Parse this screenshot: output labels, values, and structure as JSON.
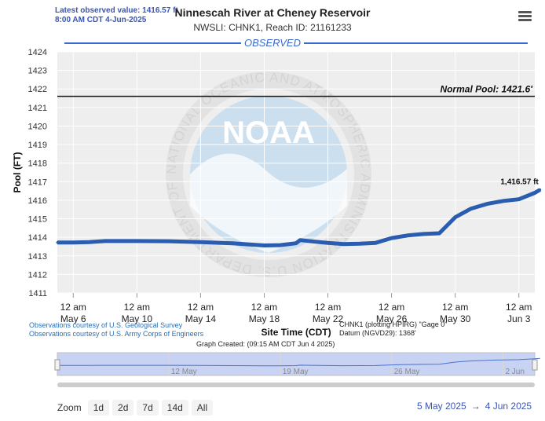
{
  "header": {
    "latest_line1": "Latest observed value: 1416.57 ft",
    "latest_line2": "8:00 AM CDT 4-Jun-2025",
    "title": "Ninnescah River at Cheney Reservoir",
    "subtitle": "NWSLI: CHNK1, Reach ID: 21161233",
    "menu_icon": "hamburger-menu-icon"
  },
  "band_label": "OBSERVED",
  "chart_data": {
    "type": "line",
    "title": "Ninnescah River at Cheney Reservoir",
    "ylabel": "Pool (FT)",
    "xlabel": "Site Time (CDT)",
    "ylim": [
      1411,
      1424
    ],
    "yticks": [
      "1411",
      "1412",
      "1413",
      "1414",
      "1415",
      "1416",
      "1417",
      "1418",
      "1419",
      "1420",
      "1421",
      "1422",
      "1423",
      "1424"
    ],
    "xlim": [
      "2025-05-05",
      "2025-06-04"
    ],
    "xticks": [
      {
        "date": "2025-05-06",
        "top": "12 am",
        "bottom": "May 6"
      },
      {
        "date": "2025-05-10",
        "top": "12 am",
        "bottom": "May 10"
      },
      {
        "date": "2025-05-14",
        "top": "12 am",
        "bottom": "May 14"
      },
      {
        "date": "2025-05-18",
        "top": "12 am",
        "bottom": "May 18"
      },
      {
        "date": "2025-05-22",
        "top": "12 am",
        "bottom": "May 22"
      },
      {
        "date": "2025-05-26",
        "top": "12 am",
        "bottom": "May 26"
      },
      {
        "date": "2025-05-30",
        "top": "12 am",
        "bottom": "May 30"
      },
      {
        "date": "2025-06-03",
        "top": "12 am",
        "bottom": "Jun 3"
      }
    ],
    "grid": true,
    "series": [
      {
        "color": "#2a5cb0",
        "points": [
          [
            "2025-05-05 00:00",
            1413.72
          ],
          [
            "2025-05-06 00:00",
            1413.72
          ],
          [
            "2025-05-07 00:00",
            1413.74
          ],
          [
            "2025-05-08 00:00",
            1413.8
          ],
          [
            "2025-05-10 00:00",
            1413.8
          ],
          [
            "2025-05-12 00:00",
            1413.79
          ],
          [
            "2025-05-14 00:00",
            1413.74
          ],
          [
            "2025-05-16 00:00",
            1413.68
          ],
          [
            "2025-05-18 00:00",
            1413.56
          ],
          [
            "2025-05-19 00:00",
            1413.58
          ],
          [
            "2025-05-20 00:00",
            1413.68
          ],
          [
            "2025-05-20 06:00",
            1413.85
          ],
          [
            "2025-05-21 00:00",
            1413.78
          ],
          [
            "2025-05-22 00:00",
            1413.7
          ],
          [
            "2025-05-23 00:00",
            1413.64
          ],
          [
            "2025-05-24 00:00",
            1413.66
          ],
          [
            "2025-05-25 00:00",
            1413.7
          ],
          [
            "2025-05-26 00:00",
            1413.96
          ],
          [
            "2025-05-27 00:00",
            1414.1
          ],
          [
            "2025-05-28 00:00",
            1414.18
          ],
          [
            "2025-05-29 00:00",
            1414.22
          ],
          [
            "2025-05-30 00:00",
            1415.08
          ],
          [
            "2025-05-31 00:00",
            1415.55
          ],
          [
            "2025-06-01 00:00",
            1415.8
          ],
          [
            "2025-06-02 00:00",
            1415.96
          ],
          [
            "2025-06-03 00:00",
            1416.05
          ],
          [
            "2025-06-04 00:00",
            1416.4
          ],
          [
            "2025-06-04 08:00",
            1416.57
          ]
        ]
      }
    ],
    "reference_line": {
      "label": "Normal Pool: 1421.6'",
      "value": 1421.6
    },
    "point_label": {
      "text": "1,416.57 ft",
      "x": "2025-06-04 08:00",
      "y": 1416.57
    },
    "watermark": {
      "text": "NOAA",
      "ring_text": "NATIONAL OCEANIC AND ATMOSPHERIC ADMINISTRATION U.S. DEPARTMENT OF COMMERCE"
    }
  },
  "credits": [
    "Observations courtesy of U.S. Geological Survey",
    "Observations courtesy of U.S. Army Corps of Engineers"
  ],
  "datum": {
    "line1": "CHNK1 (plotting HPIRG) \"Gage 0\"",
    "line2": "Datum (NGVD29): 1368'"
  },
  "graph_created": "Graph Created: (09:15 AM CDT Jun 4 2025)",
  "navigator": {
    "labels": [
      {
        "date": "2025-05-12",
        "text": "12 May"
      },
      {
        "date": "2025-05-19",
        "text": "19 May"
      },
      {
        "date": "2025-05-26",
        "text": "26 May"
      },
      {
        "date": "2025-06-02",
        "text": "2 Jun"
      }
    ]
  },
  "zoom": {
    "label": "Zoom",
    "buttons": [
      "1d",
      "2d",
      "7d",
      "14d",
      "All"
    ]
  },
  "range": {
    "from": "5 May 2025",
    "arrow": "→",
    "to": "4 Jun 2025"
  }
}
